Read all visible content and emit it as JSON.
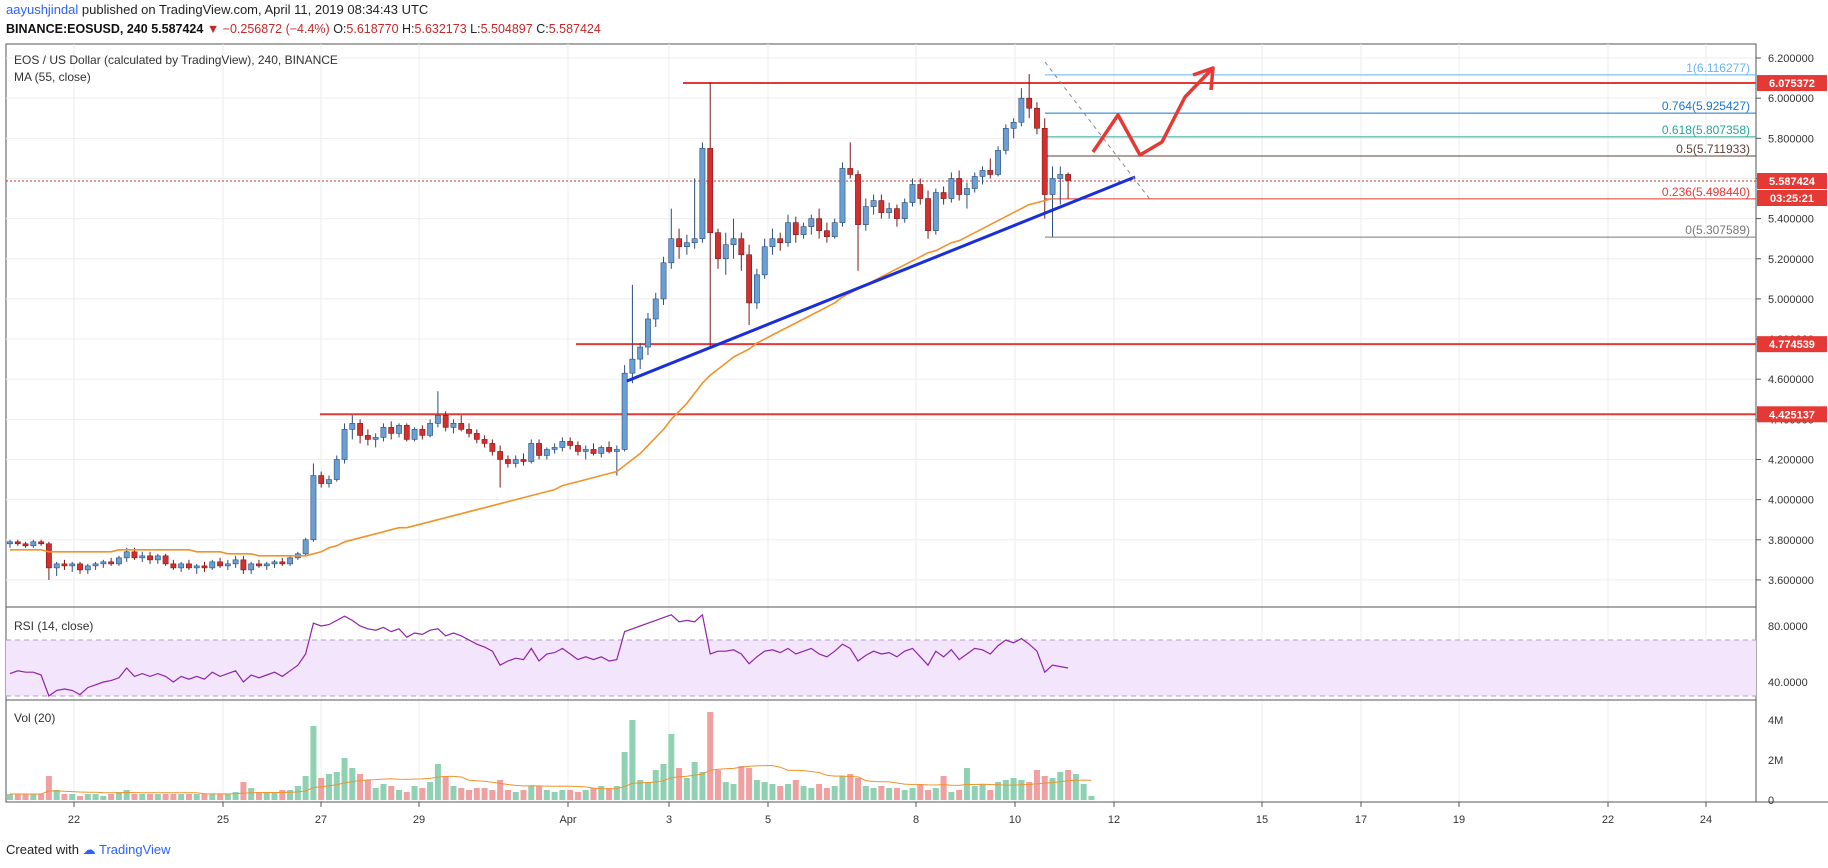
{
  "header": {
    "author": "aayushjindal",
    "published": "published on TradingView.com, April 11, 2019 08:34:43 UTC",
    "symbol": "BINANCE:EOSUSD, 240",
    "price": "5.587424",
    "change_arrow": "▼",
    "change": "−0.256872 (−4.4%)",
    "o_label": "O:",
    "o": "5.618770",
    "h_label": "H:",
    "h": "5.632173",
    "l_label": "L:",
    "l": "5.504897",
    "c_label": "C:",
    "c": "5.587424"
  },
  "footer": {
    "created_with": "Created with",
    "brand": "TradingView"
  },
  "colors": {
    "up": "#6a9fd4",
    "down": "#d32f2f",
    "ma": "#f0932b",
    "trend": "#1a2fd8",
    "level": "#e53935",
    "rsi": "#8e24aa",
    "vol_up": "#8fd1b2",
    "vol_down": "#f0a0a0"
  },
  "chart_data": {
    "type": "candlestick",
    "title": "EOS / US Dollar (calculated by TradingView), 240, BINANCE",
    "ma_label": "MA (55, close)",
    "x_ticks": [
      "22",
      "25",
      "27",
      "29",
      "Apr",
      "3",
      "5",
      "8",
      "10",
      "12",
      "15",
      "17",
      "19",
      "22",
      "24"
    ],
    "y_ticks": [
      "6.200000",
      "6.000000",
      "5.800000",
      "5.600000",
      "5.400000",
      "5.200000",
      "5.000000",
      "4.800000",
      "4.600000",
      "4.400000",
      "4.200000",
      "4.000000",
      "3.800000",
      "3.600000"
    ],
    "ylim": [
      3.5,
      6.25
    ],
    "price_labels": {
      "level_top": "6.075372",
      "current": "5.587424",
      "countdown": "03:25:21",
      "level_mid": "4.774539",
      "level_low": "4.425137"
    },
    "horizontal_levels": [
      6.075372,
      4.774539,
      4.425137
    ],
    "fib_levels": [
      {
        "label": "1(6.116277)",
        "value": 6.116277
      },
      {
        "label": "0.764(5.925427)",
        "value": 5.925427
      },
      {
        "label": "0.618(5.807358)",
        "value": 5.807358
      },
      {
        "label": "0.5(5.711933)",
        "value": 5.711933
      },
      {
        "label": "0.236(5.498440)",
        "value": 5.49844
      },
      {
        "label": "0(5.307589)",
        "value": 5.307589
      }
    ],
    "candles": [
      [
        3.78,
        3.8,
        3.76,
        3.79
      ],
      [
        3.79,
        3.8,
        3.77,
        3.78
      ],
      [
        3.78,
        3.79,
        3.76,
        3.77
      ],
      [
        3.77,
        3.8,
        3.76,
        3.79
      ],
      [
        3.79,
        3.8,
        3.77,
        3.78
      ],
      [
        3.78,
        3.79,
        3.6,
        3.66
      ],
      [
        3.66,
        3.69,
        3.62,
        3.68
      ],
      [
        3.68,
        3.7,
        3.65,
        3.67
      ],
      [
        3.67,
        3.69,
        3.64,
        3.68
      ],
      [
        3.68,
        3.69,
        3.63,
        3.65
      ],
      [
        3.65,
        3.68,
        3.63,
        3.67
      ],
      [
        3.67,
        3.69,
        3.65,
        3.68
      ],
      [
        3.68,
        3.7,
        3.66,
        3.69
      ],
      [
        3.69,
        3.71,
        3.67,
        3.68
      ],
      [
        3.68,
        3.72,
        3.67,
        3.71
      ],
      [
        3.71,
        3.76,
        3.69,
        3.74
      ],
      [
        3.74,
        3.76,
        3.7,
        3.71
      ],
      [
        3.71,
        3.74,
        3.69,
        3.72
      ],
      [
        3.72,
        3.74,
        3.68,
        3.7
      ],
      [
        3.7,
        3.73,
        3.68,
        3.72
      ],
      [
        3.72,
        3.73,
        3.67,
        3.68
      ],
      [
        3.68,
        3.7,
        3.65,
        3.66
      ],
      [
        3.66,
        3.69,
        3.64,
        3.68
      ],
      [
        3.68,
        3.7,
        3.65,
        3.66
      ],
      [
        3.66,
        3.68,
        3.63,
        3.67
      ],
      [
        3.67,
        3.69,
        3.64,
        3.66
      ],
      [
        3.66,
        3.7,
        3.65,
        3.69
      ],
      [
        3.69,
        3.71,
        3.66,
        3.67
      ],
      [
        3.67,
        3.7,
        3.65,
        3.68
      ],
      [
        3.68,
        3.72,
        3.66,
        3.7
      ],
      [
        3.7,
        3.72,
        3.63,
        3.65
      ],
      [
        3.65,
        3.69,
        3.63,
        3.68
      ],
      [
        3.68,
        3.7,
        3.66,
        3.67
      ],
      [
        3.67,
        3.69,
        3.65,
        3.68
      ],
      [
        3.68,
        3.7,
        3.66,
        3.69
      ],
      [
        3.69,
        3.71,
        3.67,
        3.68
      ],
      [
        3.68,
        3.72,
        3.67,
        3.71
      ],
      [
        3.71,
        3.74,
        3.7,
        3.73
      ],
      [
        3.73,
        3.81,
        3.72,
        3.8
      ],
      [
        3.8,
        4.18,
        3.79,
        4.12
      ],
      [
        4.12,
        4.14,
        4.06,
        4.08
      ],
      [
        4.08,
        4.12,
        4.06,
        4.1
      ],
      [
        4.1,
        4.22,
        4.09,
        4.2
      ],
      [
        4.2,
        4.38,
        4.18,
        4.35
      ],
      [
        4.35,
        4.42,
        4.3,
        4.38
      ],
      [
        4.38,
        4.4,
        4.28,
        4.32
      ],
      [
        4.32,
        4.35,
        4.27,
        4.3
      ],
      [
        4.3,
        4.33,
        4.26,
        4.31
      ],
      [
        4.31,
        4.38,
        4.29,
        4.36
      ],
      [
        4.36,
        4.39,
        4.3,
        4.33
      ],
      [
        4.33,
        4.38,
        4.31,
        4.37
      ],
      [
        4.37,
        4.38,
        4.29,
        4.3
      ],
      [
        4.3,
        4.36,
        4.29,
        4.35
      ],
      [
        4.35,
        4.37,
        4.3,
        4.32
      ],
      [
        4.32,
        4.4,
        4.31,
        4.38
      ],
      [
        4.38,
        4.54,
        4.36,
        4.42
      ],
      [
        4.42,
        4.44,
        4.34,
        4.36
      ],
      [
        4.36,
        4.4,
        4.33,
        4.38
      ],
      [
        4.38,
        4.42,
        4.34,
        4.35
      ],
      [
        4.35,
        4.38,
        4.31,
        4.33
      ],
      [
        4.33,
        4.35,
        4.28,
        4.3
      ],
      [
        4.3,
        4.32,
        4.26,
        4.28
      ],
      [
        4.28,
        4.3,
        4.22,
        4.24
      ],
      [
        4.24,
        4.27,
        4.06,
        4.2
      ],
      [
        4.2,
        4.22,
        4.16,
        4.18
      ],
      [
        4.18,
        4.22,
        4.16,
        4.2
      ],
      [
        4.2,
        4.23,
        4.17,
        4.19
      ],
      [
        4.19,
        4.3,
        4.18,
        4.28
      ],
      [
        4.28,
        4.3,
        4.2,
        4.22
      ],
      [
        4.22,
        4.26,
        4.2,
        4.25
      ],
      [
        4.25,
        4.28,
        4.23,
        4.26
      ],
      [
        4.26,
        4.31,
        4.24,
        4.29
      ],
      [
        4.29,
        4.31,
        4.25,
        4.27
      ],
      [
        4.27,
        4.29,
        4.22,
        4.24
      ],
      [
        4.24,
        4.27,
        4.2,
        4.25
      ],
      [
        4.25,
        4.28,
        4.22,
        4.23
      ],
      [
        4.23,
        4.27,
        4.21,
        4.26
      ],
      [
        4.26,
        4.29,
        4.23,
        4.24
      ],
      [
        4.24,
        4.27,
        4.12,
        4.25
      ],
      [
        4.25,
        4.67,
        4.24,
        4.63
      ],
      [
        4.63,
        5.07,
        4.58,
        4.7
      ],
      [
        4.7,
        4.78,
        4.65,
        4.76
      ],
      [
        4.76,
        4.93,
        4.72,
        4.9
      ],
      [
        4.9,
        5.03,
        4.86,
        5.0
      ],
      [
        5.0,
        5.21,
        4.97,
        5.18
      ],
      [
        5.18,
        5.45,
        5.15,
        5.3
      ],
      [
        5.3,
        5.35,
        5.2,
        5.26
      ],
      [
        5.26,
        5.32,
        5.22,
        5.28
      ],
      [
        5.28,
        5.6,
        5.25,
        5.3
      ],
      [
        5.3,
        5.78,
        5.28,
        5.75
      ],
      [
        5.75,
        6.08,
        4.76,
        5.33
      ],
      [
        5.33,
        5.35,
        5.15,
        5.2
      ],
      [
        5.2,
        5.33,
        5.12,
        5.27
      ],
      [
        5.27,
        5.4,
        5.2,
        5.3
      ],
      [
        5.3,
        5.33,
        5.14,
        5.22
      ],
      [
        5.22,
        5.27,
        4.87,
        4.98
      ],
      [
        4.98,
        5.15,
        4.95,
        5.12
      ],
      [
        5.12,
        5.3,
        5.1,
        5.26
      ],
      [
        5.26,
        5.35,
        5.22,
        5.3
      ],
      [
        5.3,
        5.33,
        5.24,
        5.28
      ],
      [
        5.28,
        5.42,
        5.26,
        5.38
      ],
      [
        5.38,
        5.41,
        5.28,
        5.32
      ],
      [
        5.32,
        5.38,
        5.3,
        5.36
      ],
      [
        5.36,
        5.42,
        5.32,
        5.4
      ],
      [
        5.4,
        5.45,
        5.3,
        5.34
      ],
      [
        5.34,
        5.38,
        5.28,
        5.31
      ],
      [
        5.31,
        5.4,
        5.3,
        5.38
      ],
      [
        5.38,
        5.68,
        5.36,
        5.65
      ],
      [
        5.65,
        5.78,
        5.6,
        5.62
      ],
      [
        5.62,
        5.64,
        5.14,
        5.37
      ],
      [
        5.37,
        5.5,
        5.34,
        5.46
      ],
      [
        5.46,
        5.52,
        5.42,
        5.49
      ],
      [
        5.49,
        5.52,
        5.4,
        5.43
      ],
      [
        5.43,
        5.48,
        5.4,
        5.45
      ],
      [
        5.45,
        5.47,
        5.36,
        5.4
      ],
      [
        5.4,
        5.5,
        5.38,
        5.48
      ],
      [
        5.48,
        5.6,
        5.46,
        5.57
      ],
      [
        5.57,
        5.6,
        5.47,
        5.5
      ],
      [
        5.5,
        5.54,
        5.3,
        5.34
      ],
      [
        5.34,
        5.55,
        5.32,
        5.53
      ],
      [
        5.53,
        5.56,
        5.47,
        5.5
      ],
      [
        5.5,
        5.63,
        5.48,
        5.6
      ],
      [
        5.6,
        5.64,
        5.49,
        5.52
      ],
      [
        5.52,
        5.58,
        5.45,
        5.55
      ],
      [
        5.55,
        5.63,
        5.53,
        5.61
      ],
      [
        5.61,
        5.66,
        5.57,
        5.64
      ],
      [
        5.64,
        5.7,
        5.6,
        5.62
      ],
      [
        5.62,
        5.76,
        5.61,
        5.74
      ],
      [
        5.74,
        5.87,
        5.72,
        5.85
      ],
      [
        5.85,
        5.9,
        5.8,
        5.88
      ],
      [
        5.88,
        6.05,
        5.86,
        6.0
      ],
      [
        6.0,
        6.12,
        5.9,
        5.95
      ],
      [
        5.95,
        5.98,
        5.82,
        5.85
      ],
      [
        5.85,
        5.9,
        5.4,
        5.52
      ],
      [
        5.52,
        5.66,
        5.31,
        5.6
      ],
      [
        5.6,
        5.66,
        5.47,
        5.62
      ],
      [
        5.62,
        5.63,
        5.5,
        5.59
      ]
    ],
    "ma_values": [
      3.75,
      3.75,
      3.75,
      3.75,
      3.75,
      3.74,
      3.74,
      3.74,
      3.74,
      3.74,
      3.74,
      3.74,
      3.74,
      3.74,
      3.75,
      3.75,
      3.75,
      3.75,
      3.75,
      3.75,
      3.75,
      3.75,
      3.75,
      3.75,
      3.74,
      3.74,
      3.74,
      3.74,
      3.73,
      3.73,
      3.73,
      3.73,
      3.72,
      3.72,
      3.72,
      3.72,
      3.72,
      3.72,
      3.72,
      3.73,
      3.74,
      3.76,
      3.77,
      3.79,
      3.8,
      3.81,
      3.82,
      3.83,
      3.84,
      3.85,
      3.86,
      3.86,
      3.87,
      3.88,
      3.89,
      3.9,
      3.91,
      3.92,
      3.93,
      3.94,
      3.95,
      3.96,
      3.97,
      3.98,
      3.99,
      4.0,
      4.01,
      4.02,
      4.03,
      4.04,
      4.05,
      4.07,
      4.08,
      4.09,
      4.1,
      4.11,
      4.12,
      4.13,
      4.14,
      4.17,
      4.2,
      4.23,
      4.27,
      4.31,
      4.35,
      4.4,
      4.44,
      4.48,
      4.53,
      4.58,
      4.62,
      4.65,
      4.68,
      4.71,
      4.73,
      4.75,
      4.78,
      4.8,
      4.82,
      4.84,
      4.86,
      4.88,
      4.9,
      4.92,
      4.94,
      4.96,
      4.98,
      5.01,
      5.03,
      5.05,
      5.07,
      5.09,
      5.11,
      5.13,
      5.15,
      5.17,
      5.19,
      5.21,
      5.23,
      5.24,
      5.26,
      5.28,
      5.29,
      5.31,
      5.33,
      5.35,
      5.37,
      5.39,
      5.41,
      5.43,
      5.45,
      5.47,
      5.48,
      5.49,
      5.5
    ],
    "rsi": {
      "label": "RSI (14, close)",
      "ticks": [
        "80.0000",
        "40.0000"
      ],
      "ylim": [
        30,
        90
      ],
      "band": [
        70,
        30
      ],
      "values": [
        46,
        48,
        47,
        47,
        45,
        30,
        34,
        35,
        34,
        31,
        36,
        38,
        40,
        41,
        43,
        50,
        44,
        46,
        44,
        46,
        44,
        40,
        44,
        42,
        44,
        42,
        47,
        44,
        46,
        48,
        40,
        45,
        43,
        45,
        47,
        44,
        48,
        52,
        60,
        82,
        80,
        81,
        84,
        87,
        84,
        80,
        78,
        77,
        79,
        76,
        78,
        72,
        75,
        74,
        77,
        78,
        73,
        75,
        73,
        70,
        67,
        65,
        62,
        52,
        55,
        57,
        56,
        64,
        55,
        60,
        61,
        64,
        60,
        56,
        58,
        56,
        58,
        55,
        56,
        76,
        78,
        80,
        82,
        84,
        86,
        88,
        83,
        84,
        83,
        88,
        60,
        62,
        62,
        63,
        60,
        53,
        58,
        62,
        63,
        61,
        64,
        60,
        62,
        64,
        60,
        58,
        62,
        67,
        64,
        55,
        59,
        62,
        60,
        61,
        58,
        62,
        64,
        58,
        52,
        62,
        58,
        63,
        56,
        60,
        64,
        63,
        60,
        66,
        70,
        68,
        71,
        67,
        62,
        47,
        52,
        51,
        50
      ]
    },
    "volume": {
      "label": "Vol (20)",
      "ticks": [
        "4M",
        "2M",
        "0"
      ],
      "ylim": [
        0,
        4.6
      ],
      "values": [
        0.3,
        0.3,
        0.3,
        0.3,
        0.3,
        1.2,
        0.5,
        0.3,
        0.3,
        0.2,
        0.3,
        0.3,
        0.2,
        0.3,
        0.4,
        0.5,
        0.3,
        0.3,
        0.3,
        0.3,
        0.3,
        0.3,
        0.3,
        0.3,
        0.3,
        0.3,
        0.3,
        0.3,
        0.3,
        0.4,
        0.9,
        0.6,
        0.4,
        0.4,
        0.4,
        0.5,
        0.5,
        0.7,
        1.2,
        3.7,
        1.1,
        1.3,
        1.4,
        2.1,
        1.6,
        1.3,
        1.0,
        0.6,
        0.8,
        0.7,
        0.5,
        0.4,
        0.7,
        0.6,
        0.9,
        1.8,
        1.2,
        0.7,
        0.6,
        0.5,
        0.6,
        0.6,
        0.5,
        1.0,
        0.5,
        0.4,
        0.5,
        0.7,
        0.7,
        0.5,
        0.4,
        0.5,
        0.5,
        0.4,
        0.5,
        0.6,
        0.7,
        0.6,
        0.7,
        2.4,
        4.0,
        1.0,
        0.9,
        1.5,
        1.8,
        3.3,
        1.6,
        1.1,
        1.9,
        1.4,
        4.4,
        1.5,
        0.9,
        0.8,
        1.7,
        1.6,
        1.0,
        0.9,
        0.8,
        0.7,
        0.8,
        1.0,
        0.7,
        0.6,
        0.8,
        0.6,
        0.7,
        1.2,
        1.3,
        1.1,
        0.7,
        0.6,
        0.7,
        0.6,
        0.6,
        0.5,
        0.6,
        0.8,
        0.5,
        0.6,
        1.2,
        0.4,
        0.5,
        1.6,
        0.7,
        0.8,
        0.5,
        0.9,
        1.0,
        1.1,
        1.0,
        0.9,
        1.5,
        1.2,
        1.1,
        1.4,
        1.5,
        1.3,
        0.8,
        0.2
      ]
    }
  }
}
